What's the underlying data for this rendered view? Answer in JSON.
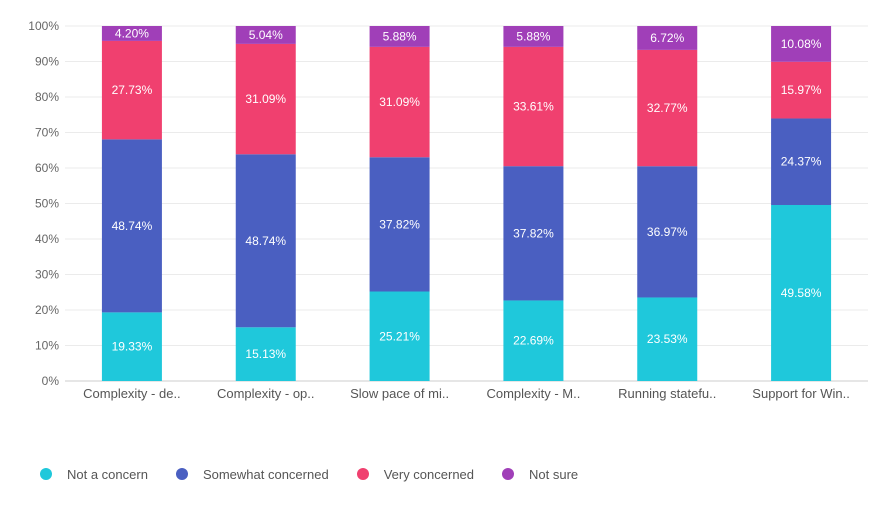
{
  "chart_data": {
    "type": "bar",
    "stacked": true,
    "categories": [
      "Complexity - de..",
      "Complexity - op..",
      "Slow pace of mi..",
      "Complexity - M..",
      "Running statefu..",
      "Support for Win.."
    ],
    "series": [
      {
        "name": "Not a concern",
        "color": "#1fc8db",
        "values": [
          19.33,
          15.13,
          25.21,
          22.69,
          23.53,
          49.58
        ],
        "labels": [
          "19.33%",
          "15.13%",
          "25.21%",
          "22.69%",
          "23.53%",
          "49.58%"
        ]
      },
      {
        "name": "Somewhat concerned",
        "color": "#4a5fc1",
        "values": [
          48.74,
          48.74,
          37.82,
          37.82,
          36.97,
          24.37
        ],
        "labels": [
          "48.74%",
          "48.74%",
          "37.82%",
          "37.82%",
          "36.97%",
          "24.37%"
        ]
      },
      {
        "name": "Very concerned",
        "color": "#f0406f",
        "values": [
          27.73,
          31.09,
          31.09,
          33.61,
          32.77,
          15.97
        ],
        "labels": [
          "27.73%",
          "31.09%",
          "31.09%",
          "33.61%",
          "32.77%",
          "15.97%"
        ]
      },
      {
        "name": "Not sure",
        "color": "#a03fb8",
        "values": [
          4.2,
          5.04,
          5.88,
          5.88,
          6.72,
          10.08
        ],
        "labels": [
          "4.20%",
          "5.04%",
          "5.88%",
          "5.88%",
          "6.72%",
          "10.08%"
        ]
      }
    ],
    "y_ticks": [
      0,
      10,
      20,
      30,
      40,
      50,
      60,
      70,
      80,
      90,
      100
    ],
    "y_tick_labels": [
      "0%",
      "10%",
      "20%",
      "30%",
      "40%",
      "50%",
      "60%",
      "70%",
      "80%",
      "90%",
      "100%"
    ],
    "ylim": [
      0,
      100
    ],
    "grid": true,
    "legend_position": "bottom-left",
    "title": "",
    "xlabel": "",
    "ylabel": ""
  }
}
